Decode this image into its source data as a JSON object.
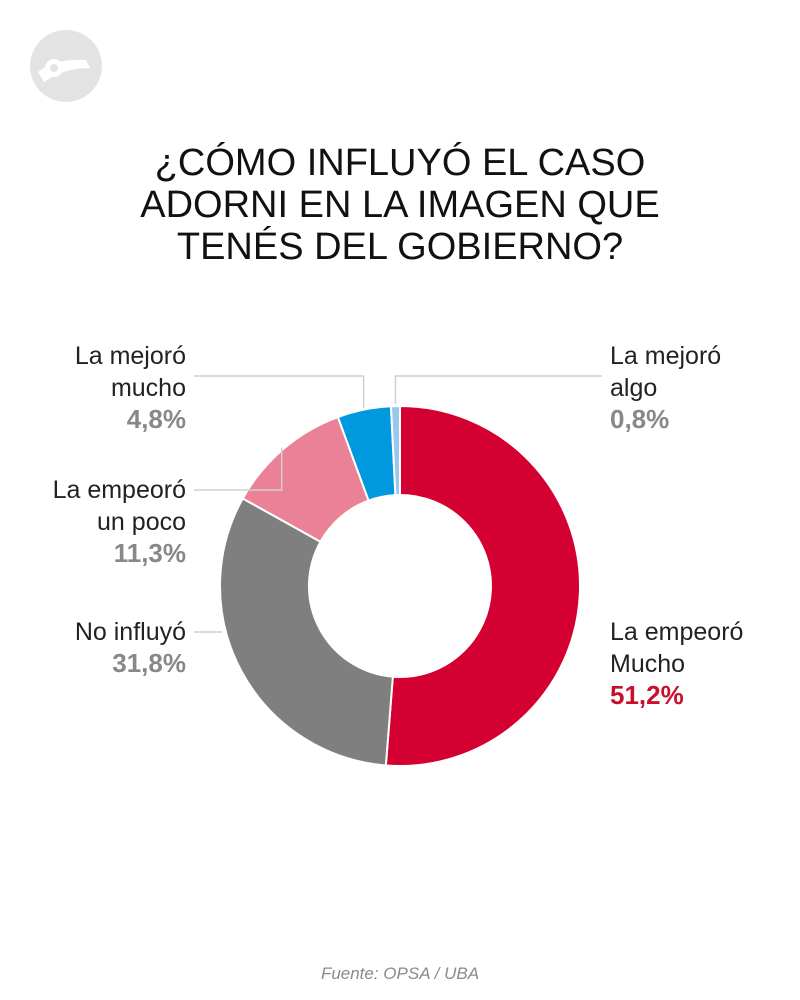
{
  "title_lines": [
    "¿CÓMO INFLUYÓ EL CASO",
    "ADORNI EN LA IMAGEN QUE",
    "TENÉS DEL GOBIERNO?"
  ],
  "source": "Fuente: OPSA / UBA",
  "logo_icon": "outlet-logo-icon",
  "chart_data": {
    "type": "pie",
    "donut": true,
    "unit": "%",
    "title": "¿CÓMO INFLUYÓ EL CASO ADORNI EN LA IMAGEN QUE TENÉS DEL GOBIERNO?",
    "slices": [
      {
        "label_lines": [
          "La empeoró",
          "Mucho"
        ],
        "value": 51.2,
        "value_label": "51,2%",
        "color": "#d50032",
        "label_color": "#c8102e"
      },
      {
        "label_lines": [
          "No influyó"
        ],
        "value": 31.8,
        "value_label": "31,8%",
        "color": "#7f7f7f",
        "label_color": "#888888"
      },
      {
        "label_lines": [
          "La empeoró",
          "un poco"
        ],
        "value": 11.3,
        "value_label": "11,3%",
        "color": "#eb8197",
        "label_color": "#888888"
      },
      {
        "label_lines": [
          "La mejoró",
          "mucho"
        ],
        "value": 4.8,
        "value_label": "4,8%",
        "color": "#0099dd",
        "label_color": "#888888"
      },
      {
        "label_lines": [
          "La mejoró",
          "algo"
        ],
        "value": 0.8,
        "value_label": "0,8%",
        "color": "#99c9ea",
        "label_color": "#888888"
      }
    ]
  }
}
